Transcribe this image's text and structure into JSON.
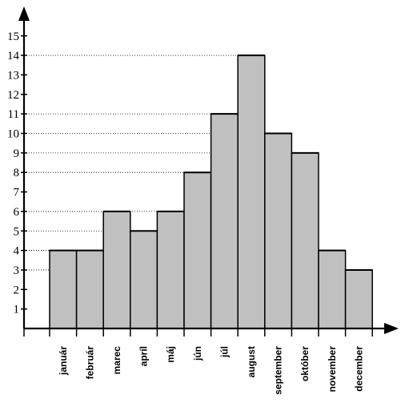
{
  "chart_data": {
    "type": "bar",
    "categories": [
      "január",
      "február",
      "marec",
      "apríl",
      "máj",
      "jún",
      "júl",
      "august",
      "september",
      "október",
      "november",
      "december"
    ],
    "values": [
      4,
      4,
      6,
      5,
      6,
      8,
      11,
      14,
      10,
      9,
      4,
      3
    ],
    "ylim": [
      0,
      15
    ],
    "yticks": [
      1,
      2,
      3,
      4,
      5,
      6,
      7,
      8,
      9,
      10,
      11,
      12,
      13,
      14,
      15
    ],
    "grid": "dotted lines from y-axis to bar tops",
    "bar_color": "#c0c0c0",
    "title": "",
    "xlabel": "",
    "ylabel": ""
  }
}
